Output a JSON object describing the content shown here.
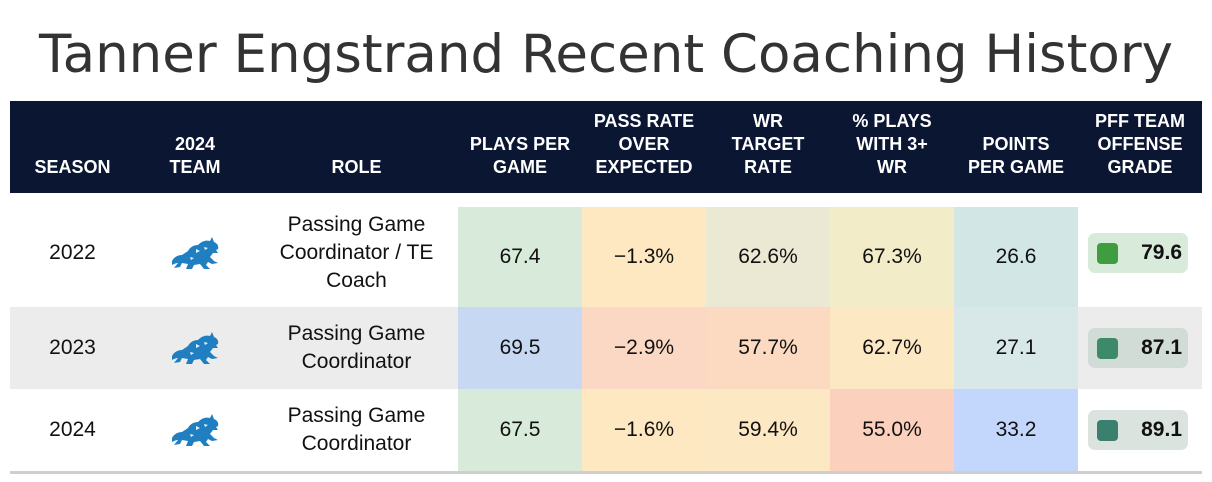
{
  "title": "Tanner Engstrand Recent Coaching History",
  "headers": {
    "season": "SEASON",
    "team": "2024\nTEAM",
    "role": "ROLE",
    "plays": "PLAYS PER\nGAME",
    "proe": "PASS RATE\nOVER\nEXPECTED",
    "wr_target": "WR\nTARGET\nRATE",
    "pct3wr": "% PLAYS\nWITH 3+\nWR",
    "ppg": "POINTS\nPER GAME",
    "pff": "PFF TEAM\nOFFENSE\nGRADE"
  },
  "rows": [
    {
      "season": "2022",
      "team_icon": "detroit-lions-logo",
      "role": "Passing Game\nCoordinator / TE\nCoach",
      "plays": "67.4",
      "proe": "−1.3%",
      "wr_target": "62.6%",
      "pct3wr": "67.3%",
      "ppg": "26.6",
      "pff": "79.6",
      "colors": {
        "plays": "#d8ead9",
        "proe": "#fde8c2",
        "wr_target": "#ebe9d3",
        "pct3wr": "#f3ecc9",
        "ppg": "#d3e6e6",
        "pff_pill": "#d8ead9",
        "pff_box": "#3f9c3f"
      }
    },
    {
      "season": "2023",
      "team_icon": "detroit-lions-logo",
      "role": "Passing Game\nCoordinator",
      "plays": "69.5",
      "proe": "−2.9%",
      "wr_target": "57.7%",
      "pct3wr": "62.7%",
      "ppg": "27.1",
      "pff": "87.1",
      "colors": {
        "plays": "#c6d8f2",
        "proe": "#fbd8c4",
        "wr_target": "#fcdac2",
        "pct3wr": "#fde8c4",
        "ppg": "#d8e7e8",
        "pff_pill": "#d2dcd6",
        "pff_box": "#3d8a68"
      }
    },
    {
      "season": "2024",
      "team_icon": "detroit-lions-logo",
      "role": "Passing Game\nCoordinator",
      "plays": "67.5",
      "proe": "−1.6%",
      "wr_target": "59.4%",
      "pct3wr": "55.0%",
      "ppg": "33.2",
      "pff": "89.1",
      "colors": {
        "plays": "#d8ead9",
        "proe": "#fde8c2",
        "wr_target": "#fde8c4",
        "pct3wr": "#fbd0bd",
        "ppg": "#c2d7fb",
        "pff_pill": "#dbe3df",
        "pff_box": "#3b7f6e"
      }
    }
  ],
  "chart_data": {
    "type": "table",
    "title": "Tanner Engstrand Recent Coaching History",
    "columns": [
      "SEASON",
      "2024 TEAM",
      "ROLE",
      "PLAYS PER GAME",
      "PASS RATE OVER EXPECTED",
      "WR TARGET RATE",
      "% PLAYS WITH 3+ WR",
      "POINTS PER GAME",
      "PFF TEAM OFFENSE GRADE"
    ],
    "rows": [
      [
        "2022",
        "Detroit Lions",
        "Passing Game Coordinator / TE Coach",
        67.4,
        -1.3,
        62.6,
        67.3,
        26.6,
        79.6
      ],
      [
        "2023",
        "Detroit Lions",
        "Passing Game Coordinator",
        69.5,
        -2.9,
        57.7,
        62.7,
        27.1,
        87.1
      ],
      [
        "2024",
        "Detroit Lions",
        "Passing Game Coordinator",
        67.5,
        -1.6,
        59.4,
        55.0,
        33.2,
        89.1
      ]
    ]
  }
}
